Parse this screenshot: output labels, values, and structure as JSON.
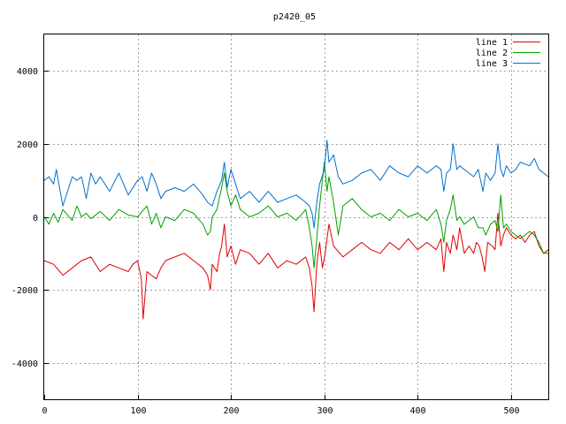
{
  "chart_data": {
    "type": "line",
    "title": "p2420_05",
    "xlabel": "",
    "ylabel": "",
    "xlim": [
      0,
      540
    ],
    "ylim": [
      -5000,
      5000
    ],
    "xticks": [
      0,
      100,
      200,
      300,
      400,
      500
    ],
    "yticks": [
      -4000,
      -2000,
      0,
      2000,
      4000
    ],
    "grid": true,
    "legend_position": "top-right",
    "series": [
      {
        "name": "line 1",
        "color": "#e00000",
        "x": [
          0,
          10,
          20,
          30,
          40,
          50,
          60,
          70,
          80,
          90,
          95,
          100,
          104,
          106,
          110,
          115,
          120,
          125,
          130,
          140,
          150,
          160,
          170,
          175,
          178,
          180,
          185,
          188,
          190,
          193,
          196,
          200,
          205,
          210,
          220,
          230,
          240,
          250,
          260,
          270,
          280,
          284,
          287,
          289,
          292,
          295,
          298,
          301,
          305,
          310,
          320,
          330,
          340,
          350,
          360,
          370,
          380,
          390,
          400,
          410,
          420,
          425,
          428,
          431,
          435,
          438,
          442,
          445,
          450,
          455,
          460,
          463,
          466,
          469,
          472,
          475,
          480,
          483,
          486,
          489,
          492,
          495,
          500,
          505,
          510,
          515,
          520,
          525,
          530,
          535,
          540
        ],
        "values": [
          -1200,
          -1300,
          -1600,
          -1400,
          -1200,
          -1100,
          -1500,
          -1300,
          -1400,
          -1500,
          -1300,
          -1200,
          -1700,
          -2800,
          -1500,
          -1600,
          -1700,
          -1400,
          -1200,
          -1100,
          -1000,
          -1200,
          -1400,
          -1600,
          -2000,
          -1300,
          -1500,
          -1000,
          -800,
          -200,
          -1100,
          -800,
          -1300,
          -900,
          -1000,
          -1300,
          -1000,
          -1400,
          -1200,
          -1300,
          -1100,
          -1400,
          -1900,
          -2600,
          -1300,
          -700,
          -1400,
          -1000,
          -200,
          -800,
          -1100,
          -900,
          -700,
          -900,
          -1000,
          -700,
          -900,
          -600,
          -900,
          -700,
          -900,
          -600,
          -1500,
          -700,
          -1000,
          -500,
          -900,
          -300,
          -1000,
          -800,
          -1000,
          -700,
          -800,
          -1100,
          -1500,
          -700,
          -800,
          -900,
          100,
          -800,
          -500,
          -300,
          -500,
          -600,
          -500,
          -700,
          -500,
          -400,
          -800,
          -1000,
          -900
        ]
      },
      {
        "name": "line 2",
        "color": "#00a000",
        "x": [
          0,
          5,
          10,
          15,
          20,
          25,
          30,
          35,
          40,
          45,
          50,
          60,
          70,
          80,
          90,
          100,
          110,
          115,
          120,
          125,
          130,
          140,
          150,
          160,
          170,
          175,
          178,
          180,
          185,
          190,
          193,
          196,
          200,
          205,
          210,
          220,
          230,
          240,
          250,
          260,
          270,
          280,
          284,
          287,
          289,
          292,
          295,
          300,
          303,
          305,
          310,
          315,
          320,
          330,
          340,
          350,
          360,
          370,
          380,
          390,
          400,
          410,
          420,
          425,
          428,
          431,
          435,
          438,
          442,
          445,
          450,
          455,
          460,
          465,
          470,
          473,
          478,
          483,
          486,
          489,
          492,
          495,
          500,
          505,
          510,
          515,
          520,
          525,
          530,
          535,
          540
        ],
        "values": [
          0,
          -200,
          100,
          -150,
          200,
          50,
          -100,
          300,
          0,
          100,
          -50,
          150,
          -100,
          200,
          50,
          0,
          300,
          -200,
          100,
          -300,
          0,
          -100,
          200,
          100,
          -200,
          -500,
          -400,
          0,
          200,
          800,
          1200,
          700,
          300,
          600,
          200,
          0,
          100,
          300,
          0,
          100,
          -100,
          200,
          -300,
          -800,
          -1400,
          -600,
          300,
          1500,
          700,
          1100,
          400,
          -500,
          300,
          500,
          200,
          0,
          100,
          -100,
          200,
          0,
          100,
          -100,
          200,
          -200,
          -700,
          -100,
          200,
          600,
          -100,
          0,
          -200,
          -100,
          0,
          -300,
          -300,
          -500,
          -200,
          -100,
          -400,
          600,
          -300,
          -200,
          -400,
          -500,
          -600,
          -500,
          -400,
          -500,
          -700,
          -1000,
          -1000
        ]
      },
      {
        "name": "line 3",
        "color": "#0070d0",
        "x": [
          0,
          5,
          10,
          13,
          15,
          20,
          25,
          30,
          35,
          40,
          45,
          50,
          55,
          60,
          70,
          80,
          90,
          100,
          105,
          110,
          115,
          120,
          125,
          130,
          140,
          150,
          160,
          170,
          175,
          180,
          185,
          190,
          193,
          196,
          200,
          205,
          210,
          220,
          230,
          240,
          250,
          260,
          270,
          280,
          284,
          287,
          289,
          292,
          295,
          300,
          303,
          305,
          310,
          315,
          320,
          330,
          340,
          350,
          360,
          370,
          380,
          390,
          400,
          410,
          420,
          425,
          428,
          431,
          435,
          438,
          442,
          445,
          450,
          455,
          460,
          465,
          470,
          473,
          478,
          483,
          486,
          489,
          492,
          495,
          500,
          505,
          510,
          520,
          525,
          530,
          535,
          540
        ],
        "values": [
          1000,
          1100,
          900,
          1300,
          1000,
          300,
          700,
          1100,
          1000,
          1100,
          500,
          1200,
          900,
          1100,
          700,
          1200,
          600,
          1000,
          1100,
          700,
          1200,
          900,
          500,
          700,
          800,
          700,
          900,
          600,
          400,
          300,
          700,
          1000,
          1500,
          800,
          1300,
          900,
          500,
          700,
          400,
          700,
          400,
          500,
          600,
          400,
          300,
          100,
          -300,
          400,
          900,
          1300,
          2100,
          1500,
          1700,
          1100,
          900,
          1000,
          1200,
          1300,
          1000,
          1400,
          1200,
          1100,
          1400,
          1200,
          1400,
          1300,
          700,
          1200,
          1300,
          2000,
          1300,
          1400,
          1300,
          1200,
          1100,
          1300,
          700,
          1200,
          1000,
          1200,
          2000,
          1300,
          1100,
          1400,
          1200,
          1300,
          1500,
          1400,
          1600,
          1300,
          1200,
          1100
        ]
      }
    ]
  }
}
